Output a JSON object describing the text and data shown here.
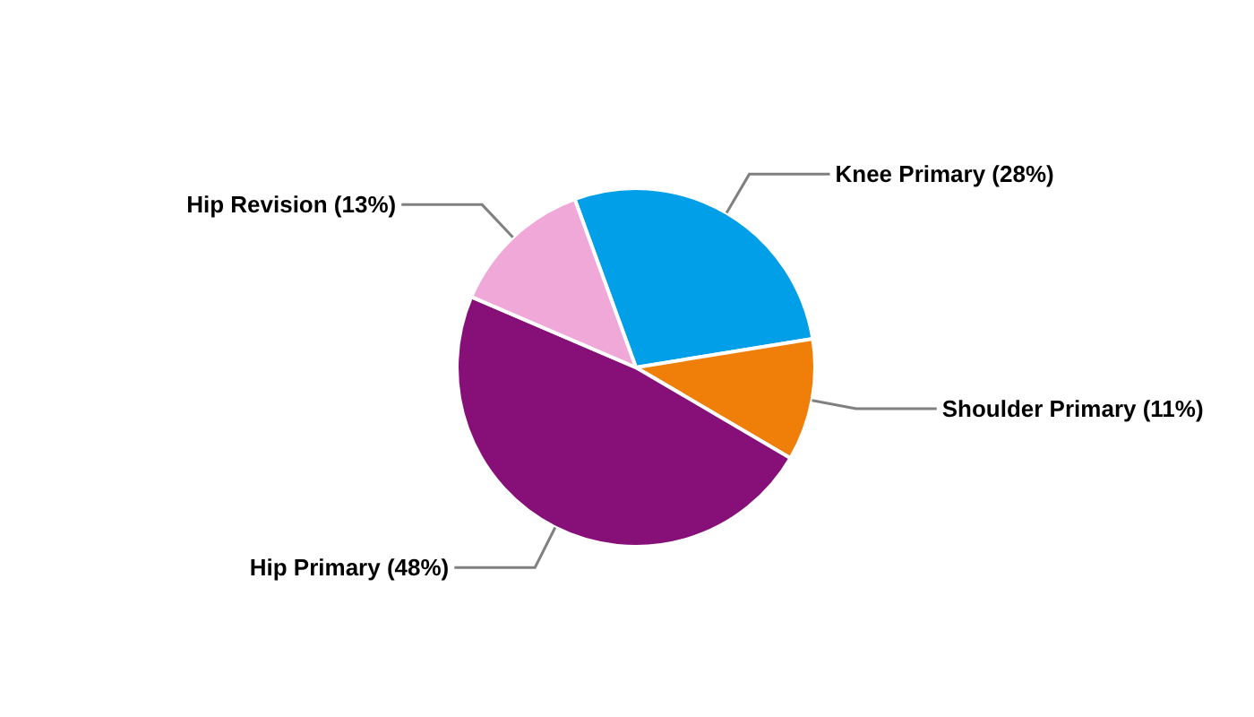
{
  "chart_data": {
    "type": "pie",
    "categories": [
      "Knee Primary (28%)",
      "Shoulder Primary (11%)",
      "Hip Primary (48%)",
      "Hip Revision (13%)"
    ],
    "values": [
      28,
      11,
      48,
      13
    ],
    "colors": [
      "#009fe8",
      "#f07f0a",
      "#860f78",
      "#f0a8d8"
    ]
  }
}
